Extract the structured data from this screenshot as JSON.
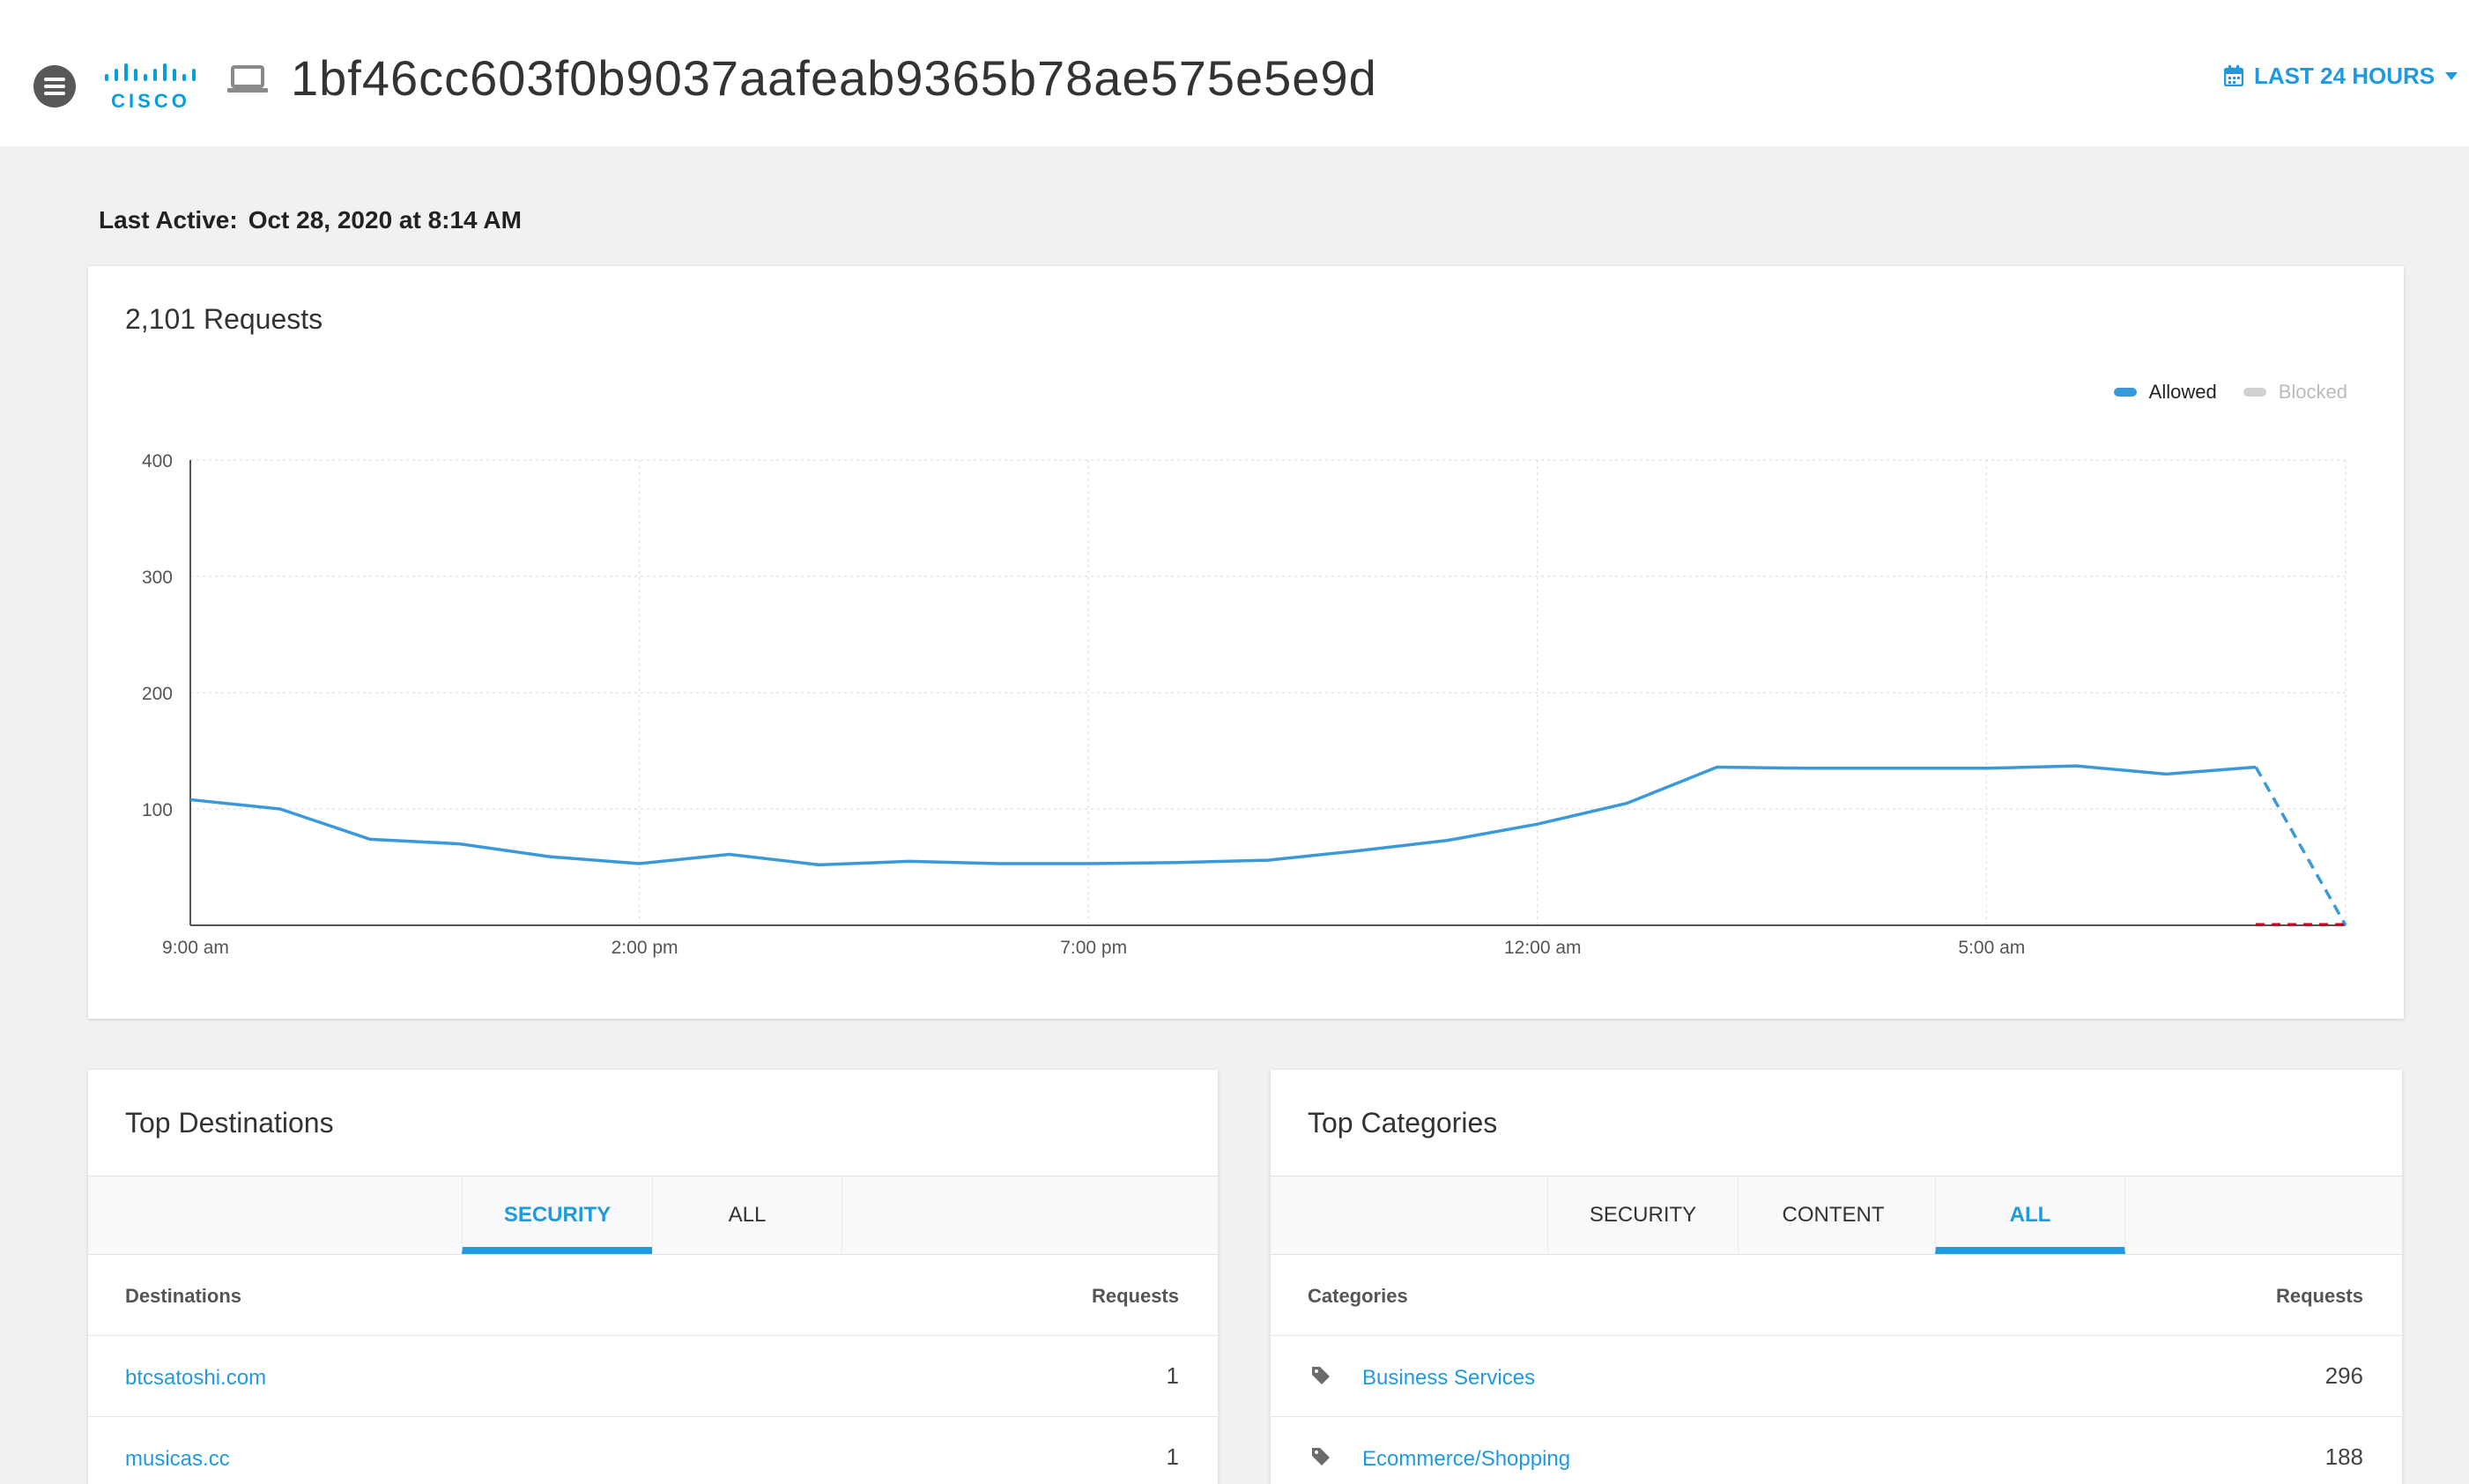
{
  "header": {
    "logo_text": "CISCO",
    "device_id": "1bf46cc603f0b9037aafeab9365b78ae575e5e9d",
    "time_range": "LAST 24 HOURS"
  },
  "last_active": {
    "label": "Last Active:",
    "value": "Oct 28, 2020 at 8:14 AM"
  },
  "requests_card": {
    "title": "2,101 Requests",
    "legend": [
      {
        "name": "Allowed",
        "color": "#3a9ad9"
      },
      {
        "name": "Blocked",
        "color": "#d0d0d0"
      }
    ]
  },
  "chart_data": {
    "type": "line",
    "ylim": [
      0,
      400
    ],
    "yticks": [
      100,
      200,
      300,
      400
    ],
    "xtick_labels": [
      "9:00 am",
      "2:00 pm",
      "7:00 pm",
      "12:00 am",
      "5:00 am"
    ],
    "xtick_hours": [
      0,
      5,
      10,
      15,
      20
    ],
    "x_hours": [
      0,
      1,
      2,
      3,
      4,
      5,
      6,
      7,
      8,
      9,
      10,
      11,
      12,
      13,
      14,
      15,
      16,
      17,
      18,
      19,
      20,
      21,
      22,
      23,
      24
    ],
    "series": [
      {
        "name": "Allowed",
        "color": "#3a9ad9",
        "values": [
          108,
          100,
          74,
          70,
          59,
          53,
          61,
          52,
          55,
          53,
          53,
          54,
          56,
          64,
          73,
          87,
          105,
          136,
          135,
          135,
          135,
          137,
          130,
          136,
          0
        ],
        "dashed_last_segment": true
      },
      {
        "name": "Blocked",
        "color": "#d0021b",
        "values": [
          0,
          0,
          0,
          0,
          0,
          0,
          0,
          0,
          0,
          0,
          0,
          0,
          0,
          0,
          0,
          0,
          0,
          0,
          0,
          0,
          0,
          0,
          0,
          0,
          0
        ]
      }
    ]
  },
  "destinations": {
    "title": "Top Destinations",
    "tabs": [
      {
        "label": "SECURITY",
        "active": true
      },
      {
        "label": "ALL",
        "active": false
      }
    ],
    "columns": [
      "Destinations",
      "Requests"
    ],
    "rows": [
      {
        "name": "btcsatoshi.com",
        "count": "1"
      },
      {
        "name": "musicas.cc",
        "count": "1"
      }
    ]
  },
  "categories": {
    "title": "Top Categories",
    "tabs": [
      {
        "label": "SECURITY",
        "active": false
      },
      {
        "label": "CONTENT",
        "active": false
      },
      {
        "label": "ALL",
        "active": true
      }
    ],
    "columns": [
      "Categories",
      "Requests"
    ],
    "rows": [
      {
        "name": "Business Services",
        "count": "296",
        "icon": "tag-icon"
      },
      {
        "name": "Ecommerce/Shopping",
        "count": "188",
        "icon": "tag-icon"
      }
    ]
  }
}
